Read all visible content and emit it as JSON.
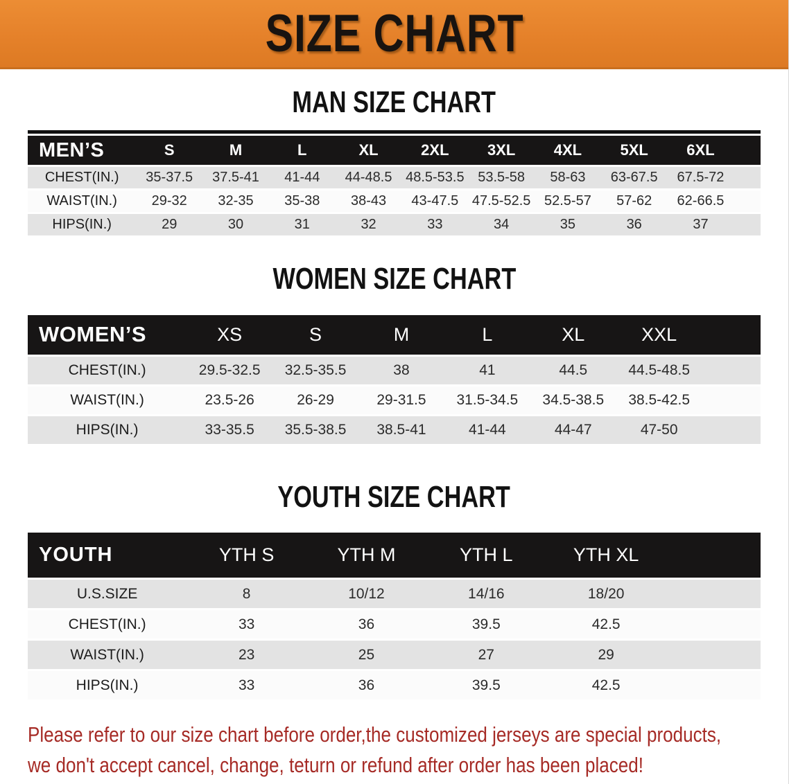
{
  "banner": {
    "title": "SIZE CHART"
  },
  "sections": [
    {
      "id": "men",
      "heading": "MAN SIZE CHART",
      "corner_label": "MEN’S",
      "columns": [
        "S",
        "M",
        "L",
        "XL",
        "2XL",
        "3XL",
        "4XL",
        "5XL",
        "6XL"
      ],
      "rows": [
        {
          "label": "CHEST(IN.)",
          "values": [
            "35-37.5",
            "37.5-41",
            "41-44",
            "44-48.5",
            "48.5-53.5",
            "53.5-58",
            "58-63",
            "63-67.5",
            "67.5-72"
          ]
        },
        {
          "label": "WAIST(IN.)",
          "values": [
            "29-32",
            "32-35",
            "35-38",
            "38-43",
            "43-47.5",
            "47.5-52.5",
            "52.5-57",
            "57-62",
            "62-66.5"
          ]
        },
        {
          "label": "HIPS(IN.)",
          "values": [
            "29",
            "30",
            "31",
            "32",
            "33",
            "34",
            "35",
            "36",
            "37"
          ]
        }
      ]
    },
    {
      "id": "women",
      "heading": "WOMEN SIZE CHART",
      "corner_label": "WOMEN’S",
      "columns": [
        "XS",
        "S",
        "M",
        "L",
        "XL",
        "XXL"
      ],
      "rows": [
        {
          "label": "CHEST(IN.)",
          "values": [
            "29.5-32.5",
            "32.5-35.5",
            "38",
            "41",
            "44.5",
            "44.5-48.5"
          ]
        },
        {
          "label": "WAIST(IN.)",
          "values": [
            "23.5-26",
            "26-29",
            "29-31.5",
            "31.5-34.5",
            "34.5-38.5",
            "38.5-42.5"
          ]
        },
        {
          "label": "HIPS(IN.)",
          "values": [
            "33-35.5",
            "35.5-38.5",
            "38.5-41",
            "41-44",
            "44-47",
            "47-50"
          ]
        }
      ]
    },
    {
      "id": "youth",
      "heading": "YOUTH SIZE CHART",
      "corner_label": "YOUTH",
      "columns": [
        "YTH S",
        "YTH M",
        "YTH L",
        "YTH XL"
      ],
      "rows": [
        {
          "label": "U.S.SIZE",
          "values": [
            "8",
            "10/12",
            "14/16",
            "18/20"
          ]
        },
        {
          "label": "CHEST(IN.)",
          "values": [
            "33",
            "36",
            "39.5",
            "42.5"
          ]
        },
        {
          "label": "WAIST(IN.)",
          "values": [
            "23",
            "25",
            "27",
            "29"
          ]
        },
        {
          "label": "HIPS(IN.)",
          "values": [
            "33",
            "36",
            "39.5",
            "42.5"
          ]
        }
      ]
    }
  ],
  "disclaimer": {
    "line1": "Please refer to our size chart before order,the customized jerseys are special products,",
    "line2": "we don't accept cancel, change, teturn or refund after order has been placed!"
  },
  "colors": {
    "banner_orange": "#e5812a",
    "banner_orange_light": "#ec8d34",
    "band_black": "#171515",
    "row_gray": "#e3e3e3",
    "disclaimer_red": "#a62b26"
  }
}
